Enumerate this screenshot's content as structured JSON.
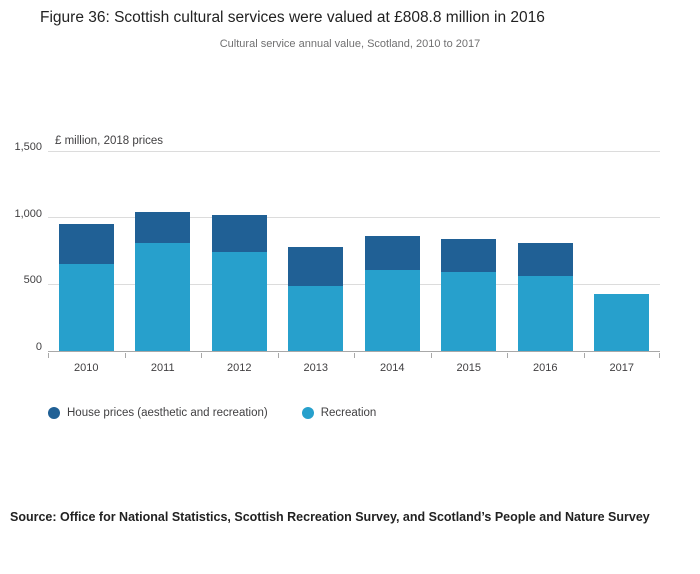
{
  "chart": {
    "title": "Figure 36: Scottish cultural services were valued at £808.8 million in 2016",
    "subtitle": "Cultural service annual value, Scotland, 2010 to 2017",
    "unit_label": "£ million, 2018 prices"
  },
  "source": "Source: Office for National Statistics, Scottish Recreation Survey, and Scotland’s People and Nature Survey",
  "chart_data": {
    "type": "bar",
    "stacked": true,
    "title": "Figure 36: Scottish cultural services were valued at £808.8 million in 2016",
    "subtitle": "Cultural service annual value, Scotland, 2010 to 2017",
    "xlabel": "",
    "ylabel": "£ million, 2018 prices",
    "categories": [
      "2010",
      "2011",
      "2012",
      "2013",
      "2014",
      "2015",
      "2016",
      "2017"
    ],
    "series": [
      {
        "name": "House prices (aesthetic and recreation)",
        "color": "#206095",
        "values": [
          295,
          230,
          275,
          290,
          255,
          250,
          248.8,
          0
        ]
      },
      {
        "name": "Recreation",
        "color": "#27A0CC",
        "values": [
          655,
          810,
          745,
          490,
          605,
          590,
          560,
          430
        ]
      }
    ],
    "stack_order_bottom_to_top": [
      "Recreation",
      "House prices (aesthetic and recreation)"
    ],
    "totals": [
      950,
      1040,
      1020,
      780,
      860,
      840,
      808.8,
      430
    ],
    "ylim": [
      0,
      1500
    ],
    "yticks": [
      0,
      500,
      1000,
      1500
    ],
    "ytick_labels": [
      "0",
      "500",
      "1,000",
      "1,500"
    ],
    "grid": "horizontal",
    "legend_position": "bottom"
  }
}
